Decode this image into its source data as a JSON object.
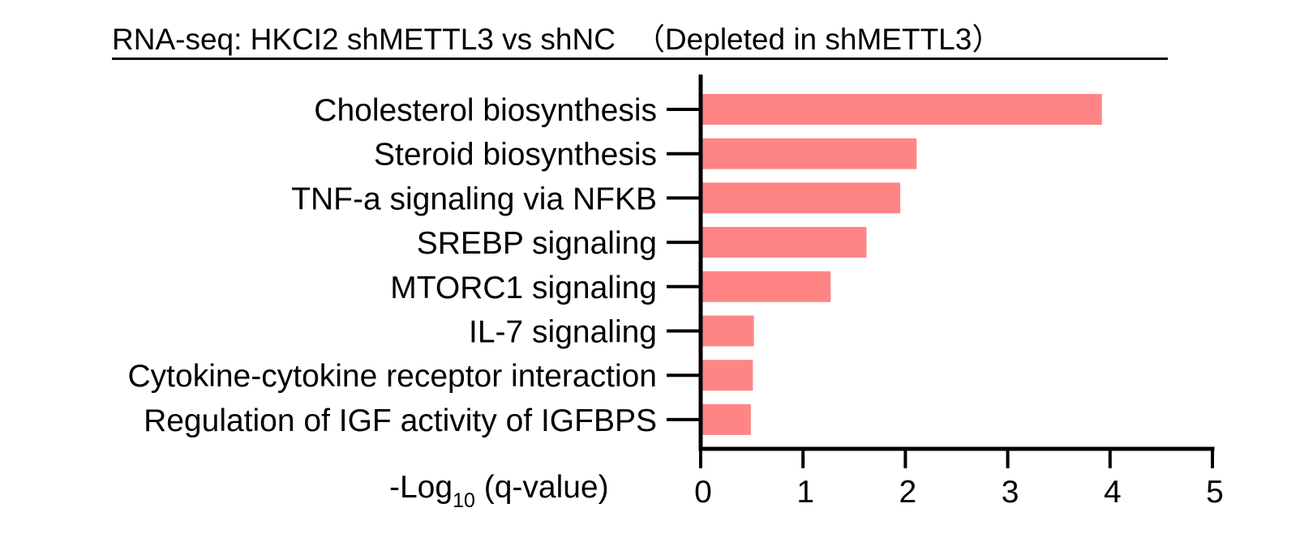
{
  "chart_data": {
    "type": "bar",
    "orientation": "horizontal",
    "title_main": "RNA-seq: HKCI2 shMETTL3 vs shNC",
    "title_paren": "（Depleted in shMETTL3）",
    "categories": [
      "Cholesterol biosynthesis",
      "Steroid biosynthesis",
      "TNF-a signaling via NFKB",
      "SREBP signaling",
      "MTORC1 signaling",
      "IL-7 signaling",
      "Cytokine-cytokine receptor interaction",
      "Regulation of IGF activity of IGFBPS"
    ],
    "values": [
      3.92,
      2.11,
      1.95,
      1.62,
      1.27,
      0.52,
      0.51,
      0.49
    ],
    "highlight_index": 0,
    "highlight_color": "#e8191c",
    "bar_color": "#ff8585",
    "xlabel_main": "-Log",
    "xlabel_sub": "10",
    "xlabel_rest": " (q-value)",
    "xlim": [
      0,
      5
    ],
    "xticks": [
      "0",
      "1",
      "2",
      "3",
      "4",
      "5"
    ],
    "grid": false
  }
}
